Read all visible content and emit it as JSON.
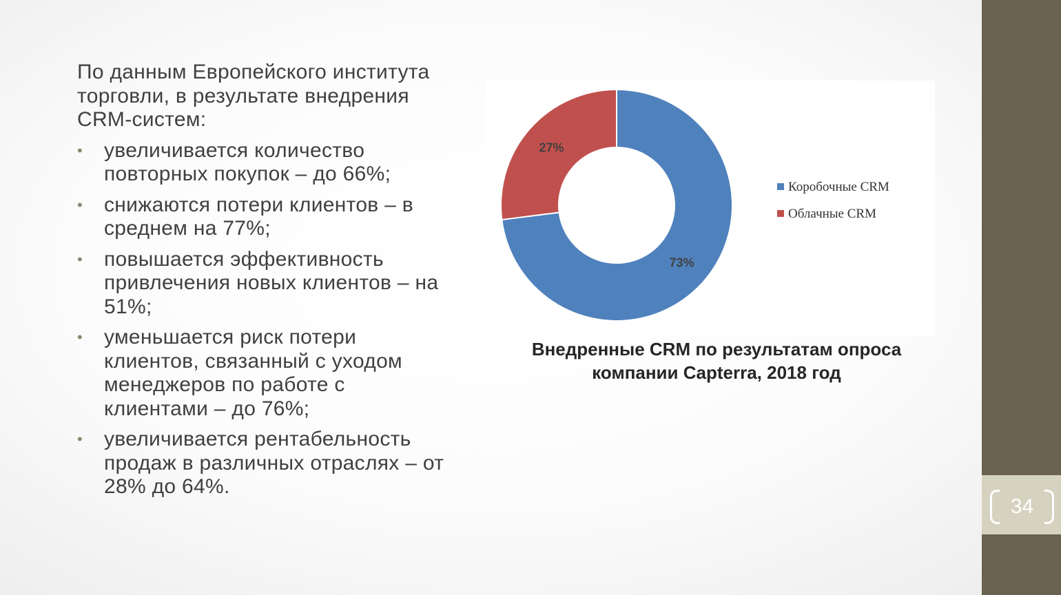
{
  "slide": {
    "intro": "По данным Европейского института торговли, в результате внедрения CRM-систем:",
    "bullets": [
      "увеличивается количество повторных покупок – до 66%;",
      "снижаются потери клиентов – в среднем на 77%;",
      "повышается эффективность привлечения новых клиентов – на 51%;",
      "уменьшается риск потери клиентов, связанный с уходом менеджеров по работе с клиентами – до 76%;",
      "увеличивается рентабельность продаж в различных отраслях – от 28% до 64%."
    ],
    "page_number": "34"
  },
  "chart_data": {
    "type": "pie",
    "variant": "donut",
    "title": "Внедренные CRM по результатам опроса компании Capterra, 2018 год",
    "categories": [
      "Коробочные CRM",
      "Облачные CRM"
    ],
    "values": [
      73,
      27
    ],
    "data_labels": [
      "73%",
      "27%"
    ],
    "colors": [
      "#4f81bd",
      "#c0504d"
    ],
    "legend_position": "right"
  },
  "colors": {
    "side_bar": "#6a6150",
    "page_tab": "#d6d2c0",
    "text": "#404040",
    "bullet": "#8d8672"
  }
}
